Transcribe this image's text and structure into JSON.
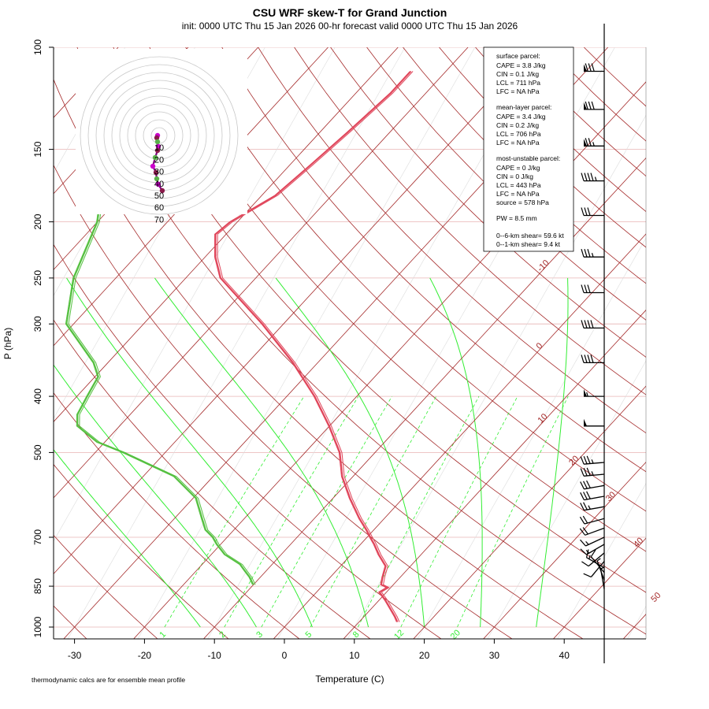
{
  "chart_data": {
    "type": "line",
    "title": "CSU WRF skew-T for Grand Junction",
    "subtitle": "init: 0000 UTC Thu 15 Jan 2026     00-hr forecast valid 0000 UTC Thu 15 Jan 2026",
    "xlabel": "Temperature (C)",
    "ylabel": "P (hPa)",
    "footnote": "thermodynamic calcs are for ensemble mean profile",
    "x_ticks": [
      "-30",
      "-20",
      "-10",
      "0",
      "10",
      "20",
      "30",
      "40"
    ],
    "y_ticks": [
      "100",
      "150",
      "200",
      "250",
      "300",
      "400",
      "500",
      "700",
      "850",
      "1000"
    ],
    "xlim": [
      -33,
      51
    ],
    "ylim": [
      1050,
      100
    ],
    "isotherm_labels": [
      "-10",
      "0",
      "10",
      "20",
      "30",
      "40",
      "50"
    ],
    "mixing_ratio_labels": [
      "1",
      "2",
      "3",
      "5",
      "8",
      "12",
      "20"
    ],
    "hodograph_labels": [
      "10",
      "20",
      "30",
      "40",
      "50",
      "60",
      "70"
    ],
    "colors": {
      "temperature": "#e0455a",
      "dewpoint": "#55c040",
      "isotherm": "#a52a2a",
      "dry_adiabat": "#a52a2a",
      "moist_adiabat": "#33ee33",
      "mixing_ratio": "#33ee33",
      "isobar": "#e8b4b4",
      "hodograph": "#800080"
    },
    "series": [
      {
        "name": "temperature",
        "pressure": [
          980,
          960,
          900,
          870,
          855,
          845,
          820,
          785,
          750,
          720,
          700,
          680,
          650,
          600,
          550,
          500,
          450,
          400,
          350,
          300,
          250,
          230,
          210,
          200,
          180,
          160,
          140,
          120,
          110
        ],
        "temp": [
          15.5,
          14.5,
          11.0,
          9.0,
          9.5,
          8.3,
          7.5,
          6.5,
          4.0,
          2.0,
          0.5,
          -1.0,
          -3.5,
          -7.5,
          -11.5,
          -15.0,
          -20.0,
          -26.0,
          -33.5,
          -43.0,
          -55.0,
          -58.5,
          -61.5,
          -61.0,
          -58.0,
          -57.0,
          -56.0,
          -55.0,
          -55.0
        ]
      },
      {
        "name": "dewpoint",
        "pressure": [
          845,
          820,
          800,
          780,
          750,
          720,
          700,
          680,
          650,
          600,
          550,
          500,
          480,
          450,
          430,
          400,
          370,
          350,
          300,
          250,
          200,
          180,
          160,
          150,
          140,
          130,
          120
        ],
        "temp": [
          -10.0,
          -11.5,
          -13.0,
          -14.5,
          -18.0,
          -20.5,
          -22.0,
          -24.0,
          -26.0,
          -29.5,
          -35.5,
          -46.0,
          -51.0,
          -56.0,
          -57.5,
          -58.5,
          -59.5,
          -62.0,
          -71.0,
          -76.0,
          -80.0,
          -83.0,
          -85.0,
          -86.0,
          -87.0,
          -88.0,
          -89.0
        ]
      }
    ],
    "surface_parcel": {
      "header": "surface parcel:",
      "lines": [
        "CAPE = 3.8 J/kg",
        "CIN = 0.1 J/kg",
        "LCL = 711 hPa",
        "LFC = NA hPa"
      ]
    },
    "mean_layer_parcel": {
      "header": "mean-layer parcel:",
      "lines": [
        "CAPE = 3.4 J/kg",
        "CIN = 0.2 J/kg",
        "LCL = 706 hPa",
        "LFC = NA hPa"
      ]
    },
    "most_unstable_parcel": {
      "header": "most-unstable parcel:",
      "lines": [
        "CAPE = 0 J/kg",
        "CIN = 0 J/kg",
        "LCL = 443 hPa",
        "LFC = NA hPa",
        "source = 578 hPa"
      ]
    },
    "pw": "PW =  8.5 mm",
    "shear": [
      "0--6-km shear= 59.6 kt",
      "0--1-km shear= 9.4 kt"
    ],
    "wind_barbs": [
      {
        "p": 110,
        "spd": 80,
        "dir": 270
      },
      {
        "p": 128,
        "spd": 80,
        "dir": 270
      },
      {
        "p": 148,
        "spd": 75,
        "dir": 270
      },
      {
        "p": 170,
        "spd": 45,
        "dir": 270
      },
      {
        "p": 195,
        "spd": 30,
        "dir": 270
      },
      {
        "p": 230,
        "spd": 35,
        "dir": 270
      },
      {
        "p": 265,
        "spd": 30,
        "dir": 270
      },
      {
        "p": 305,
        "spd": 40,
        "dir": 270
      },
      {
        "p": 350,
        "spd": 40,
        "dir": 270
      },
      {
        "p": 400,
        "spd": 55,
        "dir": 270
      },
      {
        "p": 450,
        "spd": 50,
        "dir": 270
      },
      {
        "p": 520,
        "spd": 35,
        "dir": 265
      },
      {
        "p": 545,
        "spd": 35,
        "dir": 265
      },
      {
        "p": 570,
        "spd": 30,
        "dir": 260
      },
      {
        "p": 595,
        "spd": 30,
        "dir": 260
      },
      {
        "p": 620,
        "spd": 25,
        "dir": 260
      },
      {
        "p": 650,
        "spd": 20,
        "dir": 255
      },
      {
        "p": 675,
        "spd": 20,
        "dir": 250
      },
      {
        "p": 700,
        "spd": 15,
        "dir": 245
      },
      {
        "p": 720,
        "spd": 15,
        "dir": 240
      },
      {
        "p": 745,
        "spd": 10,
        "dir": 230
      },
      {
        "p": 770,
        "spd": 10,
        "dir": 220
      },
      {
        "p": 790,
        "spd": 15,
        "dir": 300
      },
      {
        "p": 805,
        "spd": 10,
        "dir": 320
      },
      {
        "p": 830,
        "spd": 5,
        "dir": 340
      },
      {
        "p": 860,
        "spd": 5,
        "dir": 350
      }
    ]
  }
}
